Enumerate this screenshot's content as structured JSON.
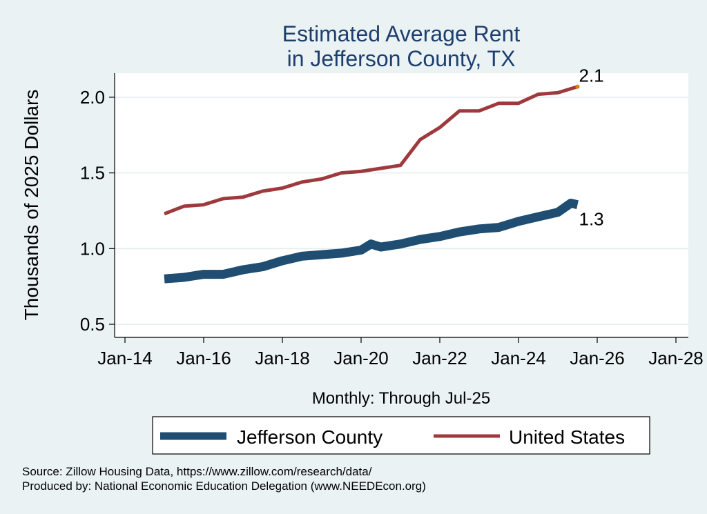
{
  "chart_data": {
    "type": "line",
    "title_lines": [
      "Estimated Average Rent",
      "in Jefferson County, TX"
    ],
    "ylabel": "Thousands of 2025 Dollars",
    "xlabel": "Monthly: Through Jul-25",
    "xlim": [
      2014.0,
      2028.0
    ],
    "ylim": [
      0.5,
      2.1
    ],
    "xticks": [
      {
        "value": 2014,
        "label": "Jan-14"
      },
      {
        "value": 2016,
        "label": "Jan-16"
      },
      {
        "value": 2018,
        "label": "Jan-18"
      },
      {
        "value": 2020,
        "label": "Jan-20"
      },
      {
        "value": 2022,
        "label": "Jan-22"
      },
      {
        "value": 2024,
        "label": "Jan-24"
      },
      {
        "value": 2026,
        "label": "Jan-26"
      },
      {
        "value": 2028,
        "label": "Jan-28"
      }
    ],
    "yticks": [
      {
        "value": 0.5,
        "label": "0.5"
      },
      {
        "value": 1.0,
        "label": "1.0"
      },
      {
        "value": 1.5,
        "label": "1.5"
      },
      {
        "value": 2.0,
        "label": "2.0"
      }
    ],
    "grid": true,
    "legend_position": "bottom",
    "series": [
      {
        "name": "Jefferson County",
        "color": "#1f4e72",
        "end_label": "1.3",
        "points": [
          [
            2015.0,
            0.8
          ],
          [
            2015.5,
            0.81
          ],
          [
            2016.0,
            0.83
          ],
          [
            2016.5,
            0.83
          ],
          [
            2017.0,
            0.86
          ],
          [
            2017.5,
            0.88
          ],
          [
            2018.0,
            0.92
          ],
          [
            2018.5,
            0.95
          ],
          [
            2019.0,
            0.96
          ],
          [
            2019.5,
            0.97
          ],
          [
            2020.0,
            0.99
          ],
          [
            2020.25,
            1.03
          ],
          [
            2020.5,
            1.01
          ],
          [
            2021.0,
            1.03
          ],
          [
            2021.5,
            1.06
          ],
          [
            2022.0,
            1.08
          ],
          [
            2022.5,
            1.11
          ],
          [
            2023.0,
            1.13
          ],
          [
            2023.5,
            1.14
          ],
          [
            2024.0,
            1.18
          ],
          [
            2024.5,
            1.21
          ],
          [
            2025.0,
            1.24
          ],
          [
            2025.33,
            1.3
          ],
          [
            2025.5,
            1.29
          ]
        ]
      },
      {
        "name": "United States",
        "color": "#9e3a3d",
        "end_label": "2.1",
        "points": [
          [
            2015.0,
            1.23
          ],
          [
            2015.5,
            1.28
          ],
          [
            2016.0,
            1.29
          ],
          [
            2016.5,
            1.33
          ],
          [
            2017.0,
            1.34
          ],
          [
            2017.5,
            1.38
          ],
          [
            2018.0,
            1.4
          ],
          [
            2018.5,
            1.44
          ],
          [
            2019.0,
            1.46
          ],
          [
            2019.5,
            1.5
          ],
          [
            2020.0,
            1.51
          ],
          [
            2020.5,
            1.53
          ],
          [
            2021.0,
            1.55
          ],
          [
            2021.5,
            1.72
          ],
          [
            2022.0,
            1.8
          ],
          [
            2022.5,
            1.91
          ],
          [
            2023.0,
            1.91
          ],
          [
            2023.5,
            1.96
          ],
          [
            2024.0,
            1.96
          ],
          [
            2024.5,
            2.02
          ],
          [
            2025.0,
            2.03
          ],
          [
            2025.5,
            2.07
          ]
        ]
      }
    ],
    "source_lines": [
      "Source: Zillow Housing Data, https://www.zillow.com/research/data/",
      "Produced by: National Economic Education Delegation (www.NEEDEcon.org)"
    ]
  }
}
